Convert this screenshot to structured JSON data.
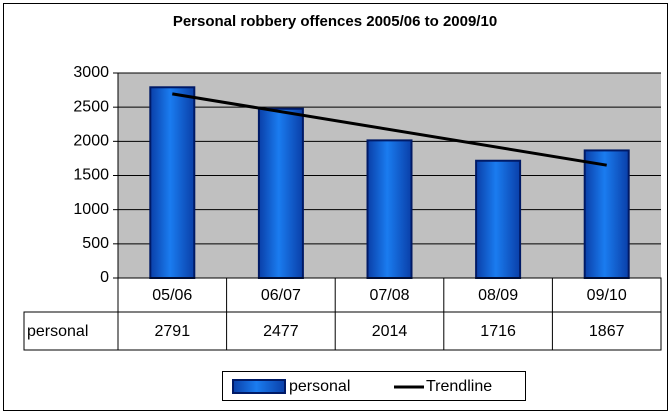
{
  "chart_data": {
    "type": "bar",
    "title": "Personal robbery offences 2005/06 to 2009/10",
    "categories": [
      "05/06",
      "06/07",
      "07/08",
      "08/09",
      "09/10"
    ],
    "series": [
      {
        "name": "personal",
        "color": "#0a5fd6",
        "values": [
          2791,
          2477,
          2014,
          1716,
          1867
        ]
      }
    ],
    "ylim": [
      0,
      3000
    ],
    "yticks": [
      0,
      500,
      1000,
      1500,
      2000,
      2500,
      3000
    ],
    "grid": true,
    "trendline": {
      "type": "linear",
      "label": "Trendline",
      "color": "#000000"
    },
    "data_table": true,
    "legend": "bottom"
  }
}
